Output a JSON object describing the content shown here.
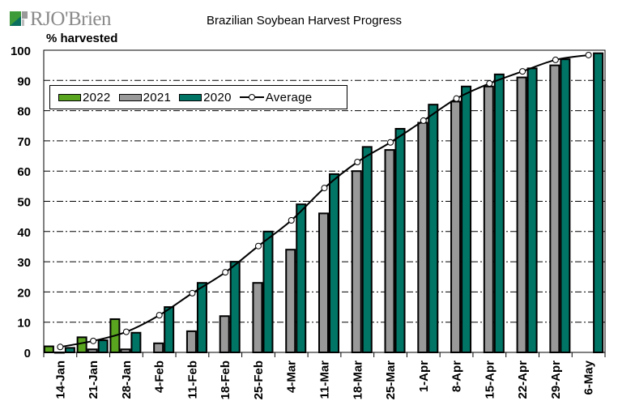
{
  "brand": {
    "name": "RJO'Brien"
  },
  "chart_data": {
    "type": "bar",
    "title": "Brazilian Soybean Harvest Progress",
    "xlabel": "",
    "ylabel": "% harvested",
    "ylim": [
      0,
      100
    ],
    "yticks": [
      0,
      10,
      20,
      30,
      40,
      50,
      60,
      70,
      80,
      90,
      100
    ],
    "grid": true,
    "legend_position": "top-left",
    "categories": [
      "14-Jan",
      "21-Jan",
      "28-Jan",
      "4-Feb",
      "11-Feb",
      "18-Feb",
      "25-Feb",
      "4-Mar",
      "11-Mar",
      "18-Mar",
      "25-Mar",
      "1-Apr",
      "8-Apr",
      "15-Apr",
      "22-Apr",
      "29-Apr",
      "6-May"
    ],
    "series": [
      {
        "name": "2022",
        "type": "bar",
        "color": "#5aa51f",
        "values": [
          2,
          5,
          11,
          null,
          null,
          null,
          null,
          null,
          null,
          null,
          null,
          null,
          null,
          null,
          null,
          null,
          null
        ]
      },
      {
        "name": "2021",
        "type": "bar",
        "color": "#999999",
        "values": [
          0,
          1,
          1,
          3,
          7,
          12,
          23,
          34,
          46,
          60,
          67,
          76,
          83,
          88,
          91,
          95,
          null
        ]
      },
      {
        "name": "2020",
        "type": "bar",
        "color": "#007566",
        "values": [
          1.5,
          4,
          6.5,
          15,
          23,
          30,
          40,
          49,
          59,
          68,
          74,
          82,
          88,
          92,
          94,
          97,
          99
        ]
      },
      {
        "name": "Average",
        "type": "line",
        "color": "#000000",
        "marker": "open-circle",
        "values": [
          1.8,
          3.8,
          6.8,
          12.3,
          19.6,
          26.5,
          35.2,
          43.7,
          54.4,
          63,
          69.5,
          76.7,
          84,
          89,
          93,
          96.8,
          98.4
        ]
      }
    ]
  }
}
